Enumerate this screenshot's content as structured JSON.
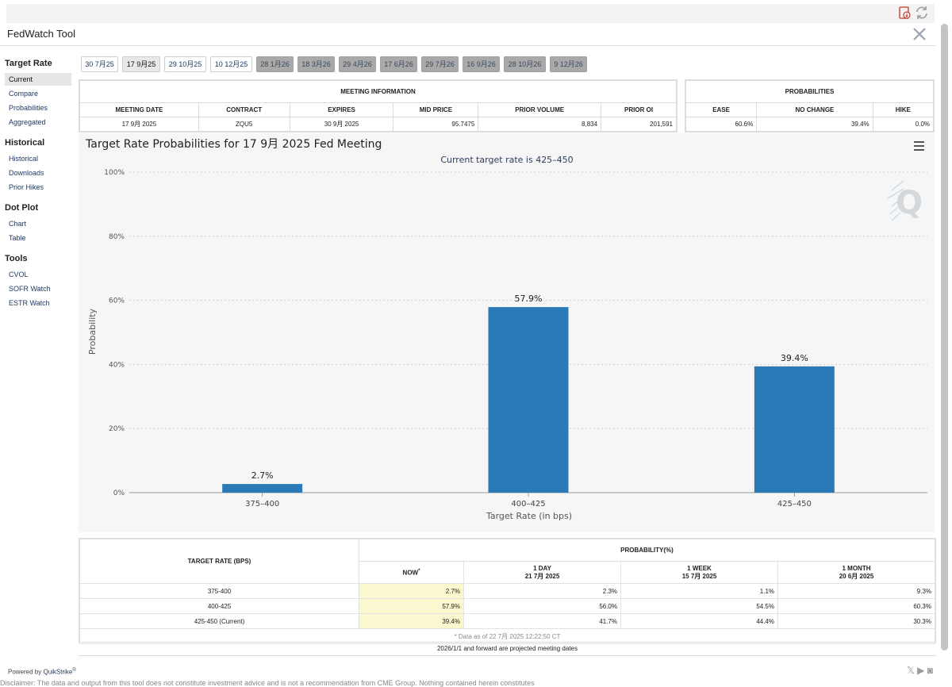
{
  "app": {
    "title": "FedWatch Tool"
  },
  "sidebar": {
    "sections": [
      {
        "heading": "Target Rate",
        "items": [
          "Current",
          "Compare",
          "Probabilities",
          "Aggregated"
        ]
      },
      {
        "heading": "Historical",
        "items": [
          "Historical",
          "Downloads",
          "Prior Hikes"
        ]
      },
      {
        "heading": "Dot Plot",
        "items": [
          "Chart",
          "Table"
        ]
      },
      {
        "heading": "Tools",
        "items": [
          "CVOL",
          "SOFR Watch",
          "ESTR Watch"
        ]
      }
    ],
    "active_item": "Current"
  },
  "meeting_tabs": [
    {
      "label": "30 7月25",
      "state": "past"
    },
    {
      "label": "17 9月25",
      "state": "selected"
    },
    {
      "label": "29 10月25",
      "state": "past"
    },
    {
      "label": "10 12月25",
      "state": "past"
    },
    {
      "label": "28 1月26",
      "state": "future"
    },
    {
      "label": "18 3月26",
      "state": "future"
    },
    {
      "label": "29 4月26",
      "state": "future"
    },
    {
      "label": "17 6月26",
      "state": "future"
    },
    {
      "label": "29 7月26",
      "state": "future"
    },
    {
      "label": "16 9月26",
      "state": "future"
    },
    {
      "label": "28 10月26",
      "state": "future"
    },
    {
      "label": "9 12月26",
      "state": "future"
    }
  ],
  "meeting_info": {
    "section_title": "MEETING INFORMATION",
    "headers": [
      "MEETING DATE",
      "CONTRACT",
      "EXPIRES",
      "MID PRICE",
      "PRIOR VOLUME",
      "PRIOR OI"
    ],
    "values": [
      "17 9月 2025",
      "ZQU5",
      "30 9月 2025",
      "95.7475",
      "8,834",
      "201,591"
    ]
  },
  "probabilities": {
    "section_title": "PROBABILITIES",
    "headers": [
      "EASE",
      "NO CHANGE",
      "HIKE"
    ],
    "values": [
      "60.6%",
      "39.4%",
      "0.0%"
    ]
  },
  "chart_header": {
    "title": "Target Rate Probabilities for 17 9月 2025 Fed Meeting",
    "menu_icon": "hamburger-menu-icon",
    "watermark": "Q"
  },
  "chart_data": {
    "type": "bar",
    "title": "Target Rate Probabilities for 17 9月 2025 Fed Meeting",
    "subtitle": "Current target rate is 425–450",
    "categories": [
      "375–400",
      "400–425",
      "425–450"
    ],
    "values": [
      2.7,
      57.9,
      39.4
    ],
    "data_labels": [
      "2.7%",
      "57.9%",
      "39.4%"
    ],
    "xlabel": "Target Rate (in bps)",
    "ylabel": "Probability",
    "ylim": [
      0,
      100
    ],
    "yticks": [
      "0%",
      "20%",
      "40%",
      "60%",
      "80%",
      "100%"
    ],
    "ytick_values": [
      0,
      20,
      40,
      60,
      80,
      100
    ],
    "bar_color": "#2a7ab8",
    "grid": true
  },
  "prob_table": {
    "col_target": "TARGET RATE (BPS)",
    "col_group": "PROBABILITY(%)",
    "subcols": [
      {
        "line1": "NOW",
        "line2": "",
        "mark": "*"
      },
      {
        "line1": "1 DAY",
        "line2": "21 7月 2025",
        "mark": ""
      },
      {
        "line1": "1 WEEK",
        "line2": "15 7月 2025",
        "mark": ""
      },
      {
        "line1": "1 MONTH",
        "line2": "20 6月 2025",
        "mark": ""
      }
    ],
    "rows": [
      {
        "rate": "375-400",
        "values": [
          "2.7%",
          "2.3%",
          "1.1%",
          "9.3%"
        ]
      },
      {
        "rate": "400-425",
        "values": [
          "57.9%",
          "56.0%",
          "54.5%",
          "60.3%"
        ]
      },
      {
        "rate": "425-450 (Current)",
        "values": [
          "39.4%",
          "41.7%",
          "44.4%",
          "30.3%"
        ]
      }
    ],
    "footnote": "* Data as of 22 7月 2025 12:22:50 CT"
  },
  "projected_note": "2026/1/1 and forward are projected meeting dates",
  "powered_by": {
    "prefix": "Powered by ",
    "brand": "QuikStrike",
    "mark": "®"
  },
  "disclaimer": "Disclaimer: The data and output from this tool does not constitute investment advice and is not a recommendation from CME Group. Nothing contained herein constitutes"
}
